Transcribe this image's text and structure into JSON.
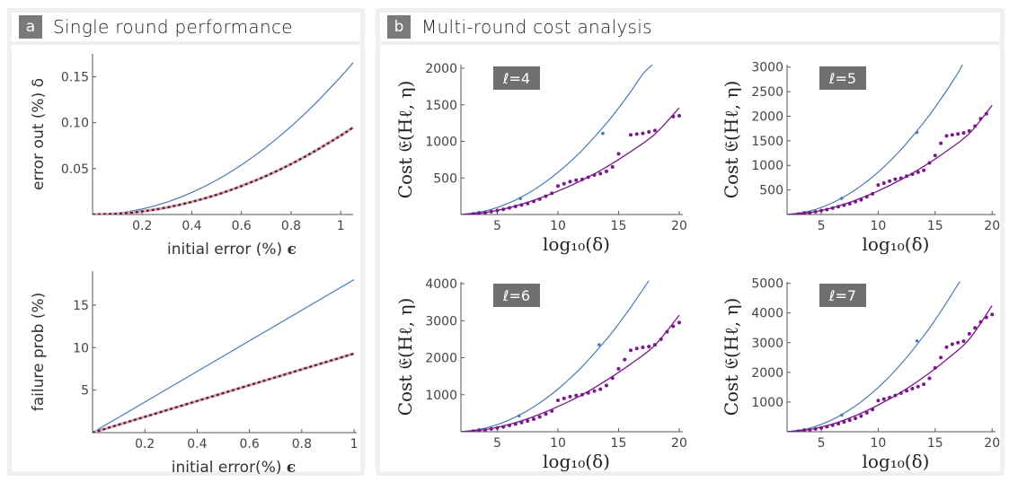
{
  "panel_a": {
    "letter": "a",
    "title": "Single round performance"
  },
  "panel_b": {
    "letter": "b",
    "title": "Multi-round cost analysis"
  },
  "colors": {
    "blue": "#4a7ab5",
    "pink": "#f0a0a8",
    "dark": "#2a2a55",
    "purple": "#7a1a8a",
    "badge": "#6f6f6f"
  },
  "chart_data": [
    {
      "type": "line",
      "id": "a-top",
      "xlabel": "initial error (%) ϵ",
      "ylabel": "error out (%) δ",
      "xlim": [
        0,
        1.05
      ],
      "ylim": [
        0,
        0.175
      ],
      "xticks": [
        0.2,
        0.4,
        0.6,
        0.8,
        1
      ],
      "yticks": [
        0.05,
        0.1,
        0.15
      ],
      "ytick_labels": [
        "0.05",
        "0.10",
        "0.15"
      ],
      "series": [
        {
          "style": "blue",
          "x": [
            0,
            0.1,
            0.2,
            0.3,
            0.4,
            0.5,
            0.6,
            0.7,
            0.8,
            0.9,
            1.0,
            1.05
          ],
          "y": [
            0,
            0.0015,
            0.006,
            0.0135,
            0.024,
            0.0375,
            0.054,
            0.0735,
            0.096,
            0.1215,
            0.15,
            0.1654
          ]
        },
        {
          "style": "pink",
          "x": [
            0,
            0.1,
            0.2,
            0.3,
            0.4,
            0.5,
            0.6,
            0.7,
            0.8,
            0.9,
            1.0,
            1.05
          ],
          "y": [
            0,
            0.00086,
            0.0034,
            0.0077,
            0.0138,
            0.0215,
            0.031,
            0.0421,
            0.055,
            0.0697,
            0.086,
            0.0948
          ]
        },
        {
          "style": "dashed",
          "x": [
            0,
            0.1,
            0.2,
            0.3,
            0.4,
            0.5,
            0.6,
            0.7,
            0.8,
            0.9,
            1.0,
            1.05
          ],
          "y": [
            0,
            0.00086,
            0.0034,
            0.0077,
            0.0138,
            0.0215,
            0.031,
            0.0421,
            0.055,
            0.0697,
            0.086,
            0.0948
          ]
        }
      ]
    },
    {
      "type": "line",
      "id": "a-bottom",
      "xlabel": "initial error(%) ϵ",
      "ylabel": "failure prob (%)",
      "xlim": [
        0,
        1.01
      ],
      "ylim": [
        0,
        19
      ],
      "xticks": [
        0.2,
        0.4,
        0.6,
        0.8,
        1
      ],
      "yticks": [
        5,
        10,
        15
      ],
      "ytick_labels": [
        "5",
        "10",
        "15"
      ],
      "series": [
        {
          "style": "blue",
          "x": [
            0,
            1
          ],
          "y": [
            0,
            18
          ]
        },
        {
          "style": "pink",
          "x": [
            0,
            1
          ],
          "y": [
            0,
            9.3
          ]
        },
        {
          "style": "dashed",
          "x": [
            0,
            1
          ],
          "y": [
            0,
            9.3
          ]
        }
      ]
    },
    {
      "type": "line",
      "id": "b-l4",
      "badge": "ℓ=4",
      "xlabel": "log₁₀(δ)",
      "ylabel": "Cost 𝔈(Hℓ, η)",
      "xlim": [
        2,
        20.3
      ],
      "ylim": [
        0,
        2050
      ],
      "xticks": [
        5,
        10,
        15,
        20
      ],
      "yticks": [
        500,
        1000,
        1500,
        2000
      ],
      "ytick_labels": [
        "500",
        "1000",
        "1500",
        "2000"
      ],
      "series": [
        {
          "style": "blue",
          "x": [
            2,
            4,
            6,
            8,
            10,
            12,
            14,
            15,
            16,
            17,
            17.8
          ],
          "y": [
            0,
            48,
            160,
            336,
            576,
            880,
            1248,
            1456,
            1680,
            1920,
            2050
          ]
        },
        {
          "style": "blue-points",
          "x": [
            3.5,
            6.9,
            13.7
          ],
          "y": [
            28,
            220,
            1110
          ]
        },
        {
          "style": "purple",
          "x": [
            2,
            4,
            6,
            8,
            10,
            12,
            14,
            16,
            18,
            20
          ],
          "y": [
            0,
            27,
            95,
            195,
            320,
            470,
            650,
            860,
            1100,
            1460
          ]
        },
        {
          "style": "purple-points",
          "x": [
            3,
            3.5,
            4,
            4.5,
            5,
            5.5,
            6,
            6.5,
            7,
            7.5,
            8,
            8.5,
            9,
            9.5,
            10,
            10.5,
            11,
            11.5,
            12,
            12.5,
            13,
            13.5,
            14,
            14.5,
            15,
            16,
            16.5,
            17,
            17.5,
            18,
            19.5,
            20
          ],
          "y": [
            8,
            15,
            25,
            40,
            55,
            70,
            90,
            110,
            130,
            150,
            180,
            210,
            250,
            290,
            390,
            420,
            450,
            470,
            480,
            510,
            540,
            560,
            590,
            650,
            830,
            1090,
            1100,
            1110,
            1130,
            1150,
            1340,
            1350
          ]
        }
      ]
    },
    {
      "type": "line",
      "id": "b-l5",
      "badge": "ℓ=5",
      "xlabel": "log₁₀(δ)",
      "ylabel": "Cost 𝔈(Hℓ, η)",
      "xlim": [
        2,
        20.3
      ],
      "ylim": [
        0,
        3050
      ],
      "xticks": [
        5,
        10,
        15,
        20
      ],
      "yticks": [
        500,
        1000,
        1500,
        2000,
        2500,
        3000
      ],
      "ytick_labels": [
        "500",
        "1000",
        "1500",
        "2000",
        "2500",
        "3000"
      ],
      "series": [
        {
          "style": "blue",
          "x": [
            2,
            4,
            6,
            8,
            10,
            12,
            14,
            15,
            16,
            17,
            17.4
          ],
          "y": [
            0,
            72,
            240,
            504,
            864,
            1320,
            1872,
            2184,
            2520,
            2880,
            3050
          ]
        },
        {
          "style": "blue-points",
          "x": [
            3.5,
            6.8,
            13.4
          ],
          "y": [
            40,
            330,
            1670
          ]
        },
        {
          "style": "purple",
          "x": [
            2,
            4,
            6,
            8,
            10,
            12,
            14,
            16,
            18,
            20
          ],
          "y": [
            0,
            40,
            140,
            290,
            480,
            710,
            980,
            1290,
            1650,
            2220
          ]
        },
        {
          "style": "purple-points",
          "x": [
            3,
            3.5,
            4,
            4.5,
            5,
            5.5,
            6,
            6.5,
            7,
            7.5,
            8,
            8.5,
            9,
            9.5,
            10,
            10.5,
            11,
            11.5,
            12,
            12.5,
            13,
            13.5,
            14,
            14.5,
            15,
            15.5,
            16,
            16.5,
            17,
            17.5,
            18,
            18.5,
            19,
            19.5
          ],
          "y": [
            10,
            20,
            35,
            55,
            80,
            100,
            130,
            160,
            190,
            220,
            260,
            300,
            360,
            420,
            600,
            640,
            680,
            720,
            740,
            780,
            820,
            860,
            900,
            1050,
            1200,
            1450,
            1600,
            1620,
            1640,
            1660,
            1700,
            1800,
            1950,
            2050
          ]
        }
      ]
    },
    {
      "type": "line",
      "id": "b-l6",
      "badge": "ℓ=6",
      "xlabel": "log₁₀(δ)",
      "ylabel": "Cost 𝔈(Hℓ, η)",
      "xlim": [
        2,
        20.3
      ],
      "ylim": [
        0,
        4050
      ],
      "xticks": [
        5,
        10,
        15,
        20
      ],
      "yticks": [
        1000,
        2000,
        3000,
        4000
      ],
      "ytick_labels": [
        "1000",
        "2000",
        "3000",
        "4000"
      ],
      "series": [
        {
          "style": "blue",
          "x": [
            2,
            4,
            6,
            8,
            10,
            12,
            14,
            15,
            16,
            17,
            17.5
          ],
          "y": [
            0,
            96,
            320,
            672,
            1152,
            1760,
            2496,
            2912,
            3360,
            3840,
            4080
          ]
        },
        {
          "style": "blue-points",
          "x": [
            3.5,
            6.8,
            13.4
          ],
          "y": [
            55,
            430,
            2350
          ]
        },
        {
          "style": "purple",
          "x": [
            2,
            4,
            6,
            8,
            10,
            12,
            14,
            16,
            18,
            20
          ],
          "y": [
            0,
            57,
            200,
            410,
            680,
            1000,
            1390,
            1830,
            2340,
            3150
          ]
        },
        {
          "style": "purple-points",
          "x": [
            3,
            3.5,
            4,
            4.5,
            5,
            5.5,
            6,
            6.5,
            7,
            7.5,
            8,
            8.5,
            9,
            9.5,
            10,
            10.5,
            11,
            11.5,
            12,
            12.5,
            13,
            13.5,
            14,
            14.5,
            15,
            15.5,
            16,
            16.5,
            17,
            17.5,
            18,
            18.5,
            19,
            19.5,
            20
          ],
          "y": [
            15,
            30,
            50,
            75,
            100,
            130,
            170,
            210,
            250,
            290,
            340,
            400,
            480,
            560,
            850,
            900,
            950,
            980,
            1000,
            1050,
            1100,
            1150,
            1250,
            1450,
            1700,
            1950,
            2200,
            2250,
            2280,
            2300,
            2350,
            2500,
            2700,
            2850,
            2950
          ]
        }
      ]
    },
    {
      "type": "line",
      "id": "b-l7",
      "badge": "ℓ=7",
      "xlabel": "log₁₀(δ)",
      "ylabel": "Cost 𝔈(Hℓ, η)",
      "xlim": [
        2,
        20.3
      ],
      "ylim": [
        0,
        5050
      ],
      "xticks": [
        5,
        10,
        15,
        20
      ],
      "yticks": [
        1000,
        2000,
        3000,
        4000,
        5000
      ],
      "ytick_labels": [
        "1000",
        "2000",
        "3000",
        "4000",
        "5000"
      ],
      "series": [
        {
          "style": "blue",
          "x": [
            2,
            4,
            6,
            8,
            10,
            12,
            14,
            15,
            16,
            17,
            17.2
          ],
          "y": [
            0,
            124,
            414,
            870,
            1490,
            2280,
            3230,
            3770,
            4350,
            4960,
            5050
          ]
        },
        {
          "style": "blue-points",
          "x": [
            3.5,
            6.8,
            13.4
          ],
          "y": [
            70,
            560,
            3060
          ]
        },
        {
          "style": "purple",
          "x": [
            2,
            4,
            6,
            8,
            10,
            12,
            14,
            16,
            18,
            20
          ],
          "y": [
            0,
            75,
            260,
            540,
            900,
            1330,
            1840,
            2430,
            3120,
            4250
          ]
        },
        {
          "style": "purple-points",
          "x": [
            3,
            3.5,
            4,
            4.5,
            5,
            5.5,
            6,
            6.5,
            7,
            7.5,
            8,
            8.5,
            9,
            9.5,
            10,
            10.5,
            11,
            11.5,
            12,
            12.5,
            13,
            13.5,
            14,
            14.5,
            15,
            15.5,
            16,
            16.5,
            17,
            17.5,
            18,
            18.5,
            19,
            19.5,
            20
          ],
          "y": [
            20,
            40,
            65,
            95,
            130,
            170,
            220,
            270,
            330,
            390,
            450,
            530,
            640,
            750,
            1050,
            1100,
            1150,
            1220,
            1300,
            1380,
            1450,
            1520,
            1600,
            1800,
            2150,
            2500,
            2850,
            2950,
            3000,
            3050,
            3300,
            3500,
            3700,
            3850,
            3950
          ]
        }
      ]
    }
  ]
}
